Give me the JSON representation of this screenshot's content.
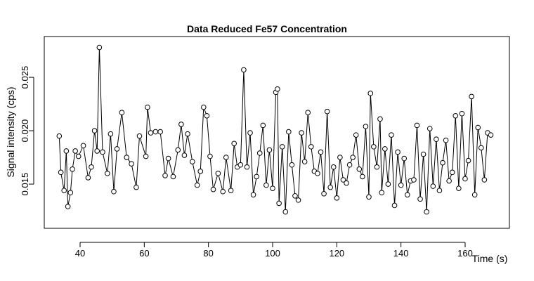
{
  "chart_data": {
    "type": "line",
    "title": "Data Reduced Fe57 Concentration",
    "x_label": "Time (s)",
    "y_label": "Signal intensity (cps)",
    "xlim": [
      28.83,
      173.8
    ],
    "ylim": [
      0.01086,
      0.02882
    ],
    "xticks": [
      40,
      60,
      80,
      100,
      120,
      140,
      160
    ],
    "yticks": [
      {
        "value": 0.015,
        "label": "0.015"
      },
      {
        "value": 0.02,
        "label": "0.020"
      },
      {
        "value": 0.025,
        "label": "0.025"
      }
    ],
    "grid": false,
    "color": "#000000",
    "x": [
      33.5,
      34,
      35,
      35.7,
      36.2,
      37,
      37.6,
      38.5,
      39.5,
      41,
      42.5,
      43.5,
      44.5,
      45.3,
      46,
      47,
      48.5,
      49.5,
      50.5,
      51.5,
      53,
      54.5,
      56,
      57.5,
      58.5,
      60.5,
      61,
      62,
      63.5,
      65,
      66.5,
      67.5,
      69,
      70.5,
      71.5,
      72.5,
      73.5,
      75,
      76.5,
      77.5,
      78.5,
      79.5,
      80.5,
      81.5,
      83,
      84.5,
      85.5,
      87,
      88,
      89,
      90,
      91,
      92,
      93,
      94,
      95,
      96,
      97,
      98,
      99,
      100,
      101,
      101.5,
      102,
      103,
      104,
      105,
      106,
      107,
      108,
      109,
      110,
      111,
      112,
      113,
      114,
      115,
      116,
      117,
      118,
      119,
      120,
      121,
      122,
      123,
      124,
      125,
      126,
      127,
      128,
      129,
      130,
      130.5,
      131.5,
      132.5,
      133.5,
      134,
      135,
      136,
      137,
      138,
      139,
      140,
      141,
      142,
      143,
      144,
      145,
      146,
      147,
      148,
      149,
      150,
      151,
      152,
      153,
      154,
      155,
      156,
      157,
      158,
      159,
      160,
      161,
      162,
      163,
      164,
      165,
      166,
      167,
      168
    ],
    "values": [
      0.0195,
      0.0161,
      0.0144,
      0.0181,
      0.0129,
      0.0142,
      0.0164,
      0.0181,
      0.0176,
      0.0186,
      0.0156,
      0.0166,
      0.02,
      0.0181,
      0.0278,
      0.018,
      0.016,
      0.0197,
      0.0143,
      0.0183,
      0.0217,
      0.0175,
      0.0169,
      0.0147,
      0.0195,
      0.0176,
      0.0222,
      0.0198,
      0.0199,
      0.0199,
      0.0158,
      0.0174,
      0.0157,
      0.0182,
      0.0206,
      0.0177,
      0.0197,
      0.0171,
      0.0149,
      0.0162,
      0.0222,
      0.0214,
      0.0176,
      0.0145,
      0.016,
      0.0143,
      0.0175,
      0.0144,
      0.0188,
      0.0166,
      0.0168,
      0.0257,
      0.0166,
      0.0198,
      0.014,
      0.0157,
      0.0179,
      0.0205,
      0.0149,
      0.0182,
      0.0146,
      0.0236,
      0.0239,
      0.0132,
      0.0185,
      0.0124,
      0.0199,
      0.0168,
      0.0139,
      0.0135,
      0.0198,
      0.0171,
      0.0217,
      0.0185,
      0.0162,
      0.016,
      0.018,
      0.0141,
      0.0218,
      0.0147,
      0.0166,
      0.0137,
      0.0175,
      0.0154,
      0.0151,
      0.0168,
      0.0175,
      0.0196,
      0.0164,
      0.0157,
      0.0204,
      0.0138,
      0.0235,
      0.0185,
      0.0166,
      0.0211,
      0.0142,
      0.0183,
      0.015,
      0.0196,
      0.013,
      0.018,
      0.0149,
      0.0174,
      0.014,
      0.0153,
      0.0154,
      0.0205,
      0.0136,
      0.0178,
      0.0124,
      0.0202,
      0.0148,
      0.0192,
      0.0144,
      0.017,
      0.0191,
      0.0153,
      0.0161,
      0.0214,
      0.0146,
      0.0216,
      0.0155,
      0.0172,
      0.0232,
      0.014,
      0.0203,
      0.0184,
      0.0154,
      0.0198,
      0.0196
    ]
  }
}
